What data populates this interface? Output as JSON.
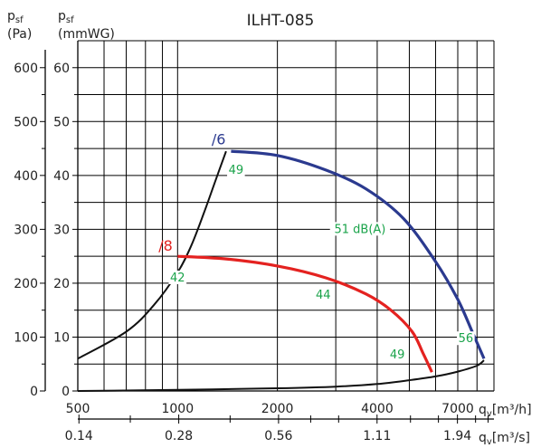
{
  "chart_data": {
    "type": "line",
    "title": "ILHT-085",
    "ylabel_pa": "psf (Pa)",
    "ylabel_mm": "psf (mmWG)",
    "ylabel_pa_main": "p",
    "ylabel_pa_sub": "sf",
    "ylabel_pa_unit": "(Pa)",
    "ylabel_mm_main": "p",
    "ylabel_mm_sub": "sf",
    "ylabel_mm_unit": "(mmWG)",
    "xlabel_m3h": "qv [m³/h]",
    "xlabel_m3s": "qv [m³/s]",
    "xlabel_main": "q",
    "xlabel_sub": "v",
    "xlabel_m3h_unit": "[m³/h]",
    "xlabel_m3s_unit": "[m³/s]",
    "x_scale": "log",
    "xlim_m3h": [
      500,
      9000
    ],
    "ylim_pa": [
      0,
      650
    ],
    "ylim_mm": [
      0,
      65
    ],
    "grid": true,
    "x_ticks_m3h": [
      {
        "value": 500,
        "label": "500"
      },
      {
        "value": 1000,
        "label": "1000"
      },
      {
        "value": 2000,
        "label": "2000"
      },
      {
        "value": 4000,
        "label": "4000"
      },
      {
        "value": 7000,
        "label": "7000"
      }
    ],
    "x_ticks_m3s": [
      {
        "value": 0.14,
        "label": "0.14"
      },
      {
        "value": 0.28,
        "label": "0.28"
      },
      {
        "value": 0.56,
        "label": "0.56"
      },
      {
        "value": 1.11,
        "label": "1.11"
      },
      {
        "value": 1.94,
        "label": "1.94"
      }
    ],
    "y_ticks_pa": [
      {
        "value": 0,
        "label": "0"
      },
      {
        "value": 100,
        "label": "100"
      },
      {
        "value": 200,
        "label": "200"
      },
      {
        "value": 300,
        "label": "300"
      },
      {
        "value": 400,
        "label": "400"
      },
      {
        "value": 500,
        "label": "500"
      },
      {
        "value": 600,
        "label": "600"
      }
    ],
    "y_ticks_mm": [
      {
        "value": 0,
        "label": "0"
      },
      {
        "value": 10,
        "label": "10"
      },
      {
        "value": 20,
        "label": "20"
      },
      {
        "value": 30,
        "label": "30"
      },
      {
        "value": 40,
        "label": "40"
      },
      {
        "value": 50,
        "label": "50"
      },
      {
        "value": 60,
        "label": "60"
      }
    ],
    "series": [
      {
        "name": "/6",
        "color": "#2b3a8f",
        "points": [
          [
            1450,
            445
          ],
          [
            2000,
            437
          ],
          [
            2800,
            410
          ],
          [
            3700,
            375
          ],
          [
            4800,
            320
          ],
          [
            6000,
            240
          ],
          [
            7000,
            170
          ],
          [
            7800,
            105
          ],
          [
            8400,
            60
          ]
        ]
      },
      {
        "name": "/8",
        "color": "#e42220",
        "points": [
          [
            1000,
            250
          ],
          [
            1400,
            245
          ],
          [
            2000,
            232
          ],
          [
            2800,
            210
          ],
          [
            3700,
            180
          ],
          [
            4400,
            150
          ],
          [
            5100,
            110
          ],
          [
            5500,
            70
          ],
          [
            5850,
            35
          ]
        ]
      }
    ],
    "system_curves": [
      {
        "color": "#111111",
        "points": [
          [
            500,
            60
          ],
          [
            700,
            110
          ],
          [
            850,
            160
          ],
          [
            1000,
            220
          ],
          [
            1100,
            270
          ],
          [
            1200,
            330
          ],
          [
            1300,
            390
          ],
          [
            1400,
            445
          ]
        ]
      },
      {
        "color": "#111111",
        "points": [
          [
            500,
            0
          ],
          [
            1000,
            2
          ],
          [
            2000,
            5
          ],
          [
            3000,
            8
          ],
          [
            4000,
            13
          ],
          [
            5000,
            20
          ],
          [
            6000,
            27
          ],
          [
            7000,
            36
          ],
          [
            8000,
            47
          ],
          [
            8400,
            57
          ]
        ]
      }
    ],
    "speed_labels": [
      {
        "text": "/6",
        "x": 1330,
        "y": 458,
        "color": "#2b3a8f"
      },
      {
        "text": "/8",
        "x": 920,
        "y": 260,
        "color": "#e42220"
      }
    ],
    "sound_labels": [
      {
        "text": "49",
        "x": 1500,
        "y": 405
      },
      {
        "text": "51 dB(A)",
        "x": 3550,
        "y": 295
      },
      {
        "text": "42",
        "x": 1000,
        "y": 205
      },
      {
        "text": "44",
        "x": 2750,
        "y": 173
      },
      {
        "text": "49",
        "x": 4600,
        "y": 62
      },
      {
        "text": "56",
        "x": 7400,
        "y": 92
      }
    ]
  }
}
